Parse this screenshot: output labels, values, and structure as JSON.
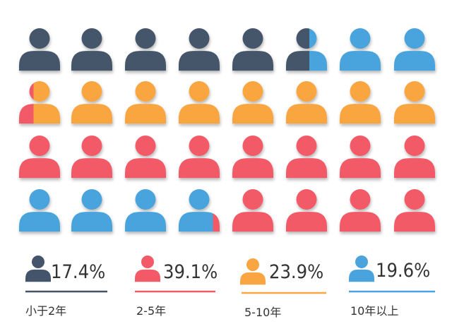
{
  "chart_data": {
    "type": "pictogram",
    "title": "",
    "grid": {
      "rows": 4,
      "columns": 8,
      "total_icons": 32
    },
    "categories": [
      "小于2年",
      "2-5年",
      "5-10年",
      "10年以上"
    ],
    "values": [
      17.4,
      39.1,
      23.9,
      19.6
    ],
    "value_labels": [
      "17.4%",
      "39.1%",
      "23.9%",
      "19.6%"
    ],
    "fill_order": [
      0,
      3,
      1,
      2
    ],
    "colors": [
      "#44546a",
      "#f25a68",
      "#f9a541",
      "#4aa3dc"
    ]
  }
}
